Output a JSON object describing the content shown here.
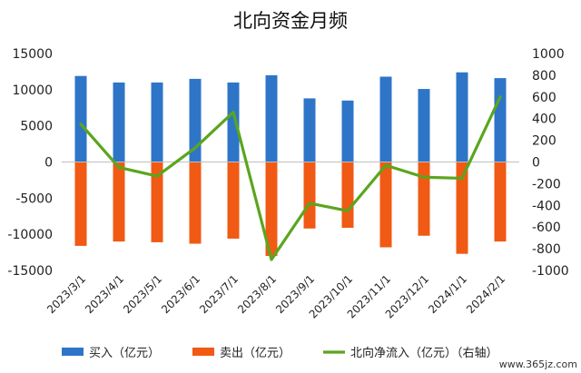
{
  "chart_data": {
    "type": "bar",
    "title": "北向资金月频",
    "categories": [
      "2023/3/1",
      "2023/4/1",
      "2023/5/1",
      "2023/6/1",
      "2023/7/1",
      "2023/8/1",
      "2023/9/1",
      "2023/10/1",
      "2023/11/1",
      "2023/12/1",
      "2024/1/1",
      "2024/2/1"
    ],
    "series": [
      {
        "name": "买入（亿元）",
        "type": "bar",
        "axis": "left",
        "color": "#2E75C8",
        "values": [
          11900,
          11000,
          11000,
          11500,
          11000,
          12000,
          8800,
          8500,
          11800,
          10100,
          12400,
          11600
        ]
      },
      {
        "name": "卖出（亿元）",
        "type": "bar",
        "axis": "left",
        "color": "#F05A14",
        "values": [
          -11600,
          -11000,
          -11100,
          -11300,
          -10600,
          -13000,
          -9200,
          -9100,
          -11800,
          -10200,
          -12700,
          -11000
        ]
      },
      {
        "name": "北向净流入（亿元）（右轴）",
        "type": "line",
        "axis": "right",
        "color": "#5BA51E",
        "values": [
          350,
          -50,
          -130,
          130,
          460,
          -900,
          -380,
          -450,
          -30,
          -140,
          -150,
          600
        ]
      }
    ],
    "left_axis": {
      "min": -15000,
      "max": 15000,
      "ticks": [
        "15000",
        "10000",
        "5000",
        "0",
        "-5000",
        "-10000",
        "-15000"
      ]
    },
    "right_axis": {
      "min": -1000,
      "max": 1000,
      "ticks": [
        "1000",
        "800",
        "600",
        "400",
        "200",
        "0",
        "-200",
        "-400",
        "-600",
        "-800",
        "-1000"
      ]
    },
    "grid": false,
    "legend_position": "bottom"
  },
  "watermark": "www.365jz.com"
}
